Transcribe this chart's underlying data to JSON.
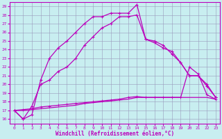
{
  "xlabel": "Windchill (Refroidissement éolien,°C)",
  "bg_color": "#c8eef0",
  "line_color": "#bb00bb",
  "grid_color": "#9999bb",
  "xlim": [
    -0.5,
    23.5
  ],
  "ylim": [
    15.5,
    29.5
  ],
  "xticks": [
    0,
    1,
    2,
    3,
    4,
    5,
    6,
    7,
    8,
    9,
    10,
    11,
    12,
    13,
    14,
    15,
    16,
    17,
    18,
    19,
    20,
    21,
    22,
    23
  ],
  "yticks": [
    16,
    17,
    18,
    19,
    20,
    21,
    22,
    23,
    24,
    25,
    26,
    27,
    28,
    29
  ],
  "series1_x": [
    0,
    1,
    2,
    3,
    4,
    5,
    6,
    7,
    8,
    9,
    10,
    11,
    12,
    13,
    14,
    15,
    16,
    17,
    18,
    19,
    20,
    21,
    22,
    23
  ],
  "series1_y": [
    17.0,
    16.0,
    16.5,
    20.5,
    23.0,
    24.2,
    25.0,
    26.0,
    27.0,
    27.8,
    27.8,
    28.2,
    28.2,
    28.2,
    29.2,
    25.2,
    25.0,
    24.5,
    23.5,
    22.5,
    21.0,
    21.0,
    20.0,
    18.5
  ],
  "series2_x": [
    0,
    1,
    2,
    3,
    4,
    5,
    6,
    7,
    8,
    9,
    10,
    11,
    12,
    13,
    14,
    15,
    16,
    17,
    18,
    19,
    20,
    21,
    22,
    23
  ],
  "series2_y": [
    17.0,
    16.0,
    17.5,
    20.0,
    20.5,
    21.5,
    22.0,
    23.0,
    24.5,
    25.5,
    26.5,
    27.0,
    27.8,
    27.8,
    28.0,
    25.2,
    24.8,
    24.2,
    23.8,
    22.5,
    21.0,
    21.0,
    19.8,
    18.5
  ],
  "series3_x": [
    0,
    1,
    2,
    3,
    4,
    5,
    6,
    7,
    8,
    9,
    10,
    11,
    12,
    13,
    14,
    15,
    16,
    17,
    18,
    19,
    20,
    21,
    22,
    23
  ],
  "series3_y": [
    17.0,
    17.1,
    17.2,
    17.4,
    17.5,
    17.6,
    17.7,
    17.8,
    17.9,
    18.0,
    18.1,
    18.2,
    18.3,
    18.5,
    18.6,
    18.5,
    18.5,
    18.5,
    18.5,
    18.5,
    22.0,
    21.2,
    18.8,
    18.3
  ],
  "series4_x": [
    0,
    1,
    2,
    3,
    4,
    5,
    6,
    7,
    8,
    9,
    10,
    11,
    12,
    13,
    14,
    15,
    16,
    17,
    18,
    19,
    20,
    21,
    22,
    23
  ],
  "series4_y": [
    17.0,
    17.0,
    17.1,
    17.2,
    17.3,
    17.4,
    17.5,
    17.6,
    17.8,
    17.9,
    18.0,
    18.1,
    18.2,
    18.3,
    18.5,
    18.5,
    18.5,
    18.5,
    18.5,
    18.5,
    18.5,
    18.5,
    18.5,
    18.3
  ]
}
